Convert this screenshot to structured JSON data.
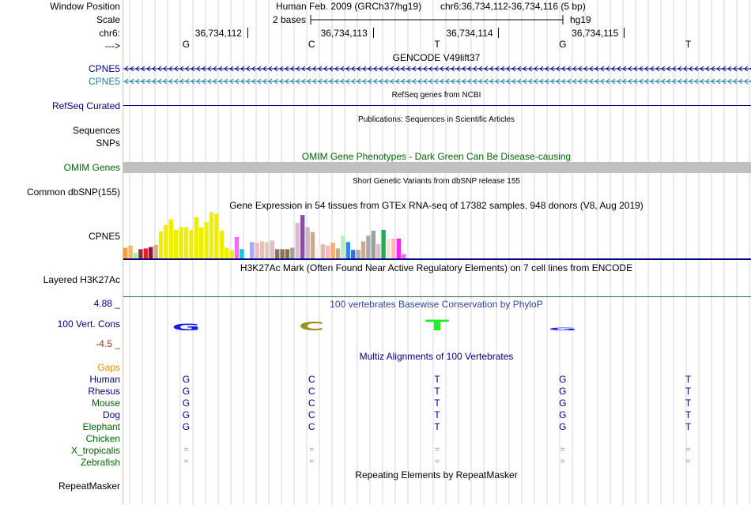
{
  "ruler": {
    "window_position_label": "Window Position",
    "scale_label": "Scale",
    "chrom_label": "chr6:",
    "strand_label": "--->",
    "assembly_text": "Human Feb. 2009 (GRCh37/hg19)",
    "position_text": "chr6:36,734,112-36,734,116 (5 bp)",
    "scale_text": "2 bases",
    "db_text": "hg19",
    "ticks": [
      "36,734,112",
      "36,734,113",
      "36,734,114",
      "36,734,115"
    ],
    "bases": [
      "G",
      "C",
      "T",
      "G",
      "T"
    ]
  },
  "gencode": {
    "title": "GENCODE V49lift37",
    "gene1": "CPNE5",
    "gene2": "CPNE5"
  },
  "refseq": {
    "title": "RefSeq genes from NCBI",
    "label": "RefSeq Curated"
  },
  "publications": {
    "title": "Publications: Sequences in Scientific Articles",
    "label": "Sequences"
  },
  "snps": {
    "label": "SNPs"
  },
  "omim": {
    "title": "OMIM Gene Phenotypes - Dark Green Can Be Disease-causing",
    "label": "OMIM Genes"
  },
  "dbsnp": {
    "title": "Short Genetic Variants from dbSNP release 155",
    "label": "Common dbSNP(155)"
  },
  "gtex": {
    "title": "Gene Expression in 54 tissues from GTEx RNA-seq of 17382 samples, 948 donors (V8, Aug 2019)",
    "label": "CPNE5",
    "bar_values": [
      15,
      18,
      8,
      13,
      14,
      16,
      19,
      38,
      47,
      55,
      40,
      44,
      44,
      40,
      58,
      44,
      51,
      65,
      63,
      39,
      15,
      11,
      30,
      13,
      12,
      23,
      22,
      24,
      23,
      25,
      13,
      13,
      13,
      15,
      50,
      61,
      44,
      37,
      16,
      20,
      18,
      22,
      14,
      32,
      23,
      12,
      12,
      24,
      32,
      39,
      20,
      40,
      27,
      28,
      28,
      6
    ],
    "bar_colors": [
      "#ff9d3a",
      "#ffb55c",
      "#99ff99",
      "#9b2a3a",
      "#ee1c25",
      "#8b1a3a",
      "#d4ac8b",
      "#eeee00",
      "#eeee00",
      "#eeee00",
      "#eeee00",
      "#eeee00",
      "#eeee00",
      "#eeee00",
      "#eeee00",
      "#eeee00",
      "#eeee00",
      "#eeee00",
      "#eeee00",
      "#eeee00",
      "#eeee00",
      "#eeee00",
      "#ff66ff",
      "#00ccdd",
      "#ffffff",
      "#aaaaee",
      "#eebbbb",
      "#eebbbb",
      "#ddccbb",
      "#ddbbcc",
      "#8b7355",
      "#8b7355",
      "#8b6f47",
      "#9e9e9e",
      "#ddbbcc",
      "#8b4fa0",
      "#ccb3cc",
      "#ccaa88",
      "#ffeeee",
      "#d9c0a8",
      "#ffb6c1",
      "#ffaa66",
      "#ccaa88",
      "#bbeebb",
      "#3388ee",
      "#3377cc",
      "#aaaaaa",
      "#ccaa88",
      "#aaaaaa",
      "#9e9e9e",
      "#ddbbcc",
      "#22aa55",
      "#f0e6cc",
      "#ffb6c1",
      "#ff22ff",
      "#ff66ff"
    ]
  },
  "h3k27ac": {
    "title": "H3K27Ac Mark (Often Found Near Active Regulatory Elements) on 7 cell lines from ENCODE",
    "label": "Layered H3K27Ac"
  },
  "cons": {
    "title": "100 vertebrates Basewise Conservation by PhyloP",
    "label": "100 Vert. Cons",
    "y_max_text": "4.88 _",
    "y_min_text": "-4.5 _",
    "letters": [
      "G",
      "C",
      "T",
      "G",
      "T"
    ],
    "scores": [
      1.5,
      1.9,
      2.4,
      0.5,
      0
    ],
    "colors": [
      "#1a1aee",
      "#9b8f1c",
      "#22ee22",
      "#1a1aee",
      "#1a1aee"
    ]
  },
  "multiz": {
    "title": "Multiz Alignments of 100 Vertebrates",
    "gaps_label": "Gaps",
    "species": [
      {
        "name": "Human",
        "bases": [
          "G",
          "C",
          "T",
          "G",
          "T"
        ]
      },
      {
        "name": "Rhesus",
        "bases": [
          "G",
          "C",
          "T",
          "G",
          "T"
        ]
      },
      {
        "name": "Mouse",
        "bases": [
          "G",
          "C",
          "T",
          "G",
          "T"
        ]
      },
      {
        "name": "Dog",
        "bases": [
          "G",
          "C",
          "T",
          "G",
          "T"
        ]
      },
      {
        "name": "Elephant",
        "bases": [
          "G",
          "C",
          "T",
          "G",
          "T"
        ]
      },
      {
        "name": "Chicken",
        "bases": [
          "",
          "",
          "",
          "",
          ""
        ]
      },
      {
        "name": "X_tropicalis",
        "bases": [
          "=",
          "=",
          "=",
          "=",
          "="
        ]
      },
      {
        "name": "Zebrafish",
        "bases": [
          "=",
          "=",
          "=",
          "=",
          "="
        ]
      }
    ]
  },
  "repeatmasker": {
    "title": "Repeating Elements by RepeatMasker",
    "label": "RepeatMasker"
  },
  "colors": {
    "navy": "#000080",
    "teal": "#1b7fa8",
    "omim_green": "#006600",
    "omim_gray": "#c0c0c0",
    "gaps_orange": "#e58f00",
    "dark_red": "#8b3a1a",
    "cons_title": "#3344aa",
    "grid": "#d6d6ee",
    "guide": "#ff9999"
  }
}
